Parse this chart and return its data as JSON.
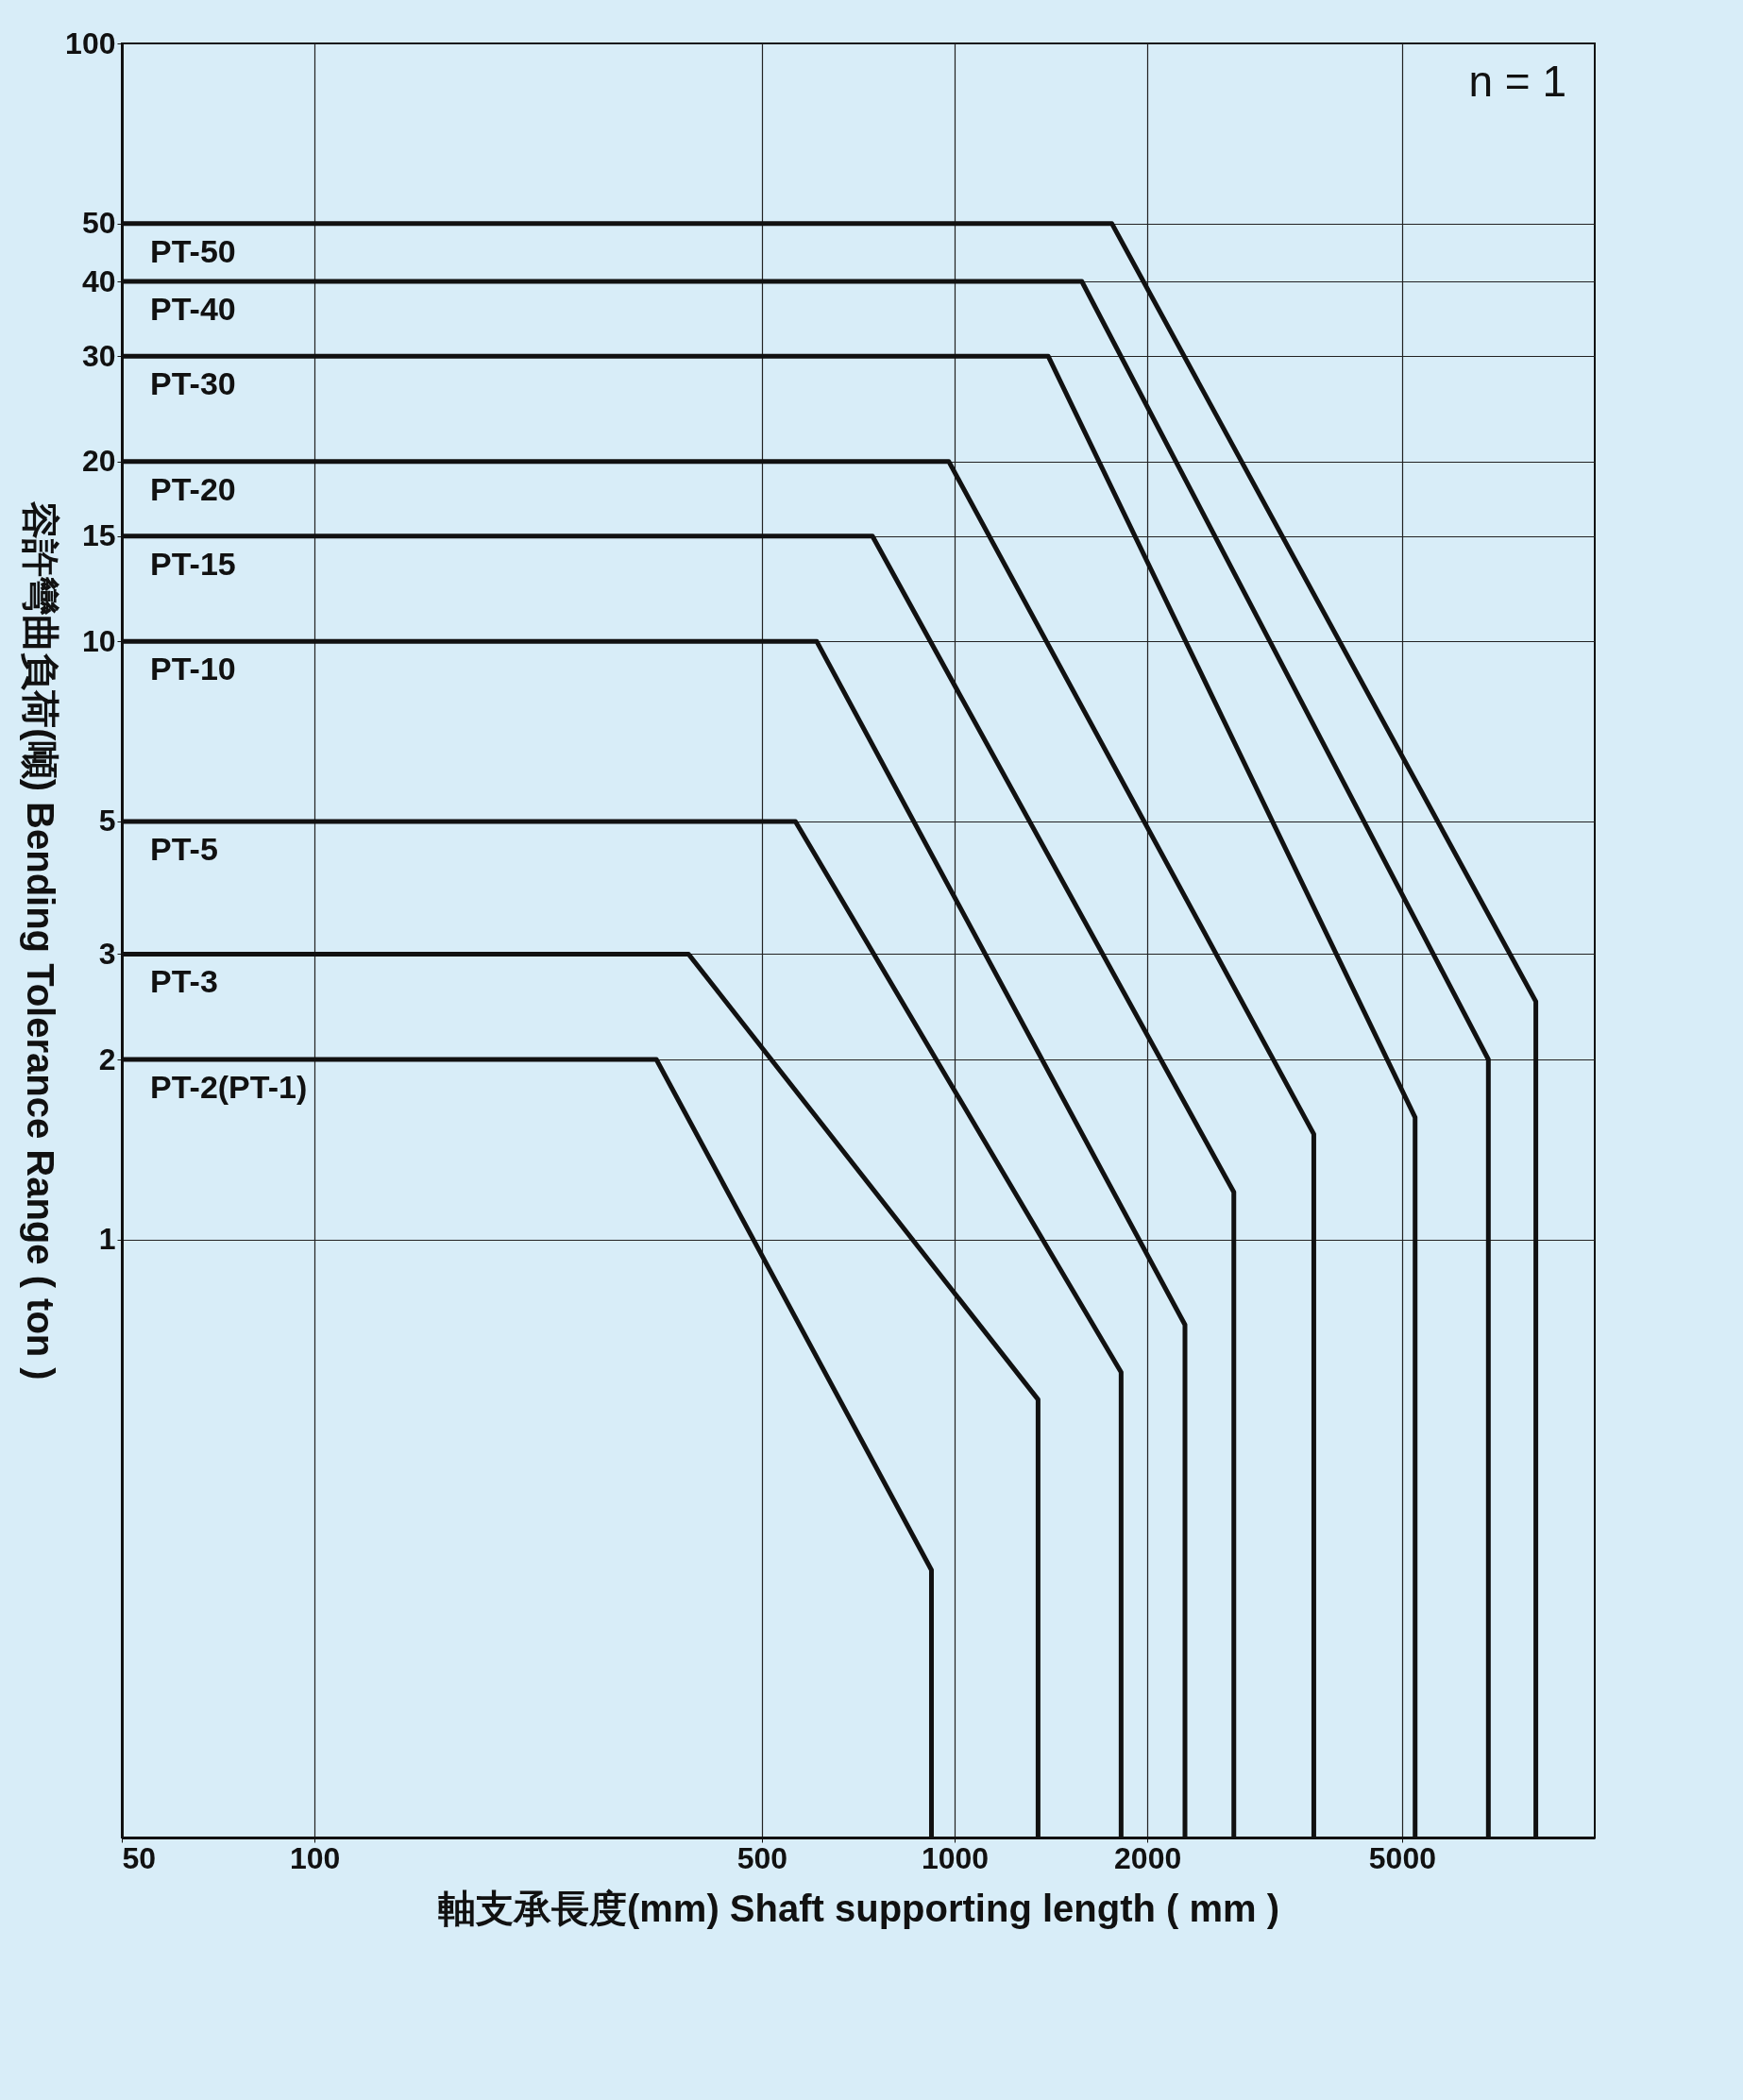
{
  "chart_data": {
    "type": "line",
    "xlabel": "軸支承長度(mm) Shaft supporting length ( mm )",
    "ylabel": "容許彎曲負荷(噸) Bending Tolerance Range ( ton )",
    "annotations": [
      "n = 1"
    ],
    "xlim": [
      50,
      10000
    ],
    "xticks": [
      50,
      100,
      500,
      1000,
      2000,
      5000
    ],
    "ylim": [
      0.1,
      100
    ],
    "yticks": [
      1,
      2,
      3,
      5,
      10,
      15,
      20,
      30,
      40,
      50,
      100
    ],
    "grid": true,
    "log": "xy",
    "series": [
      {
        "name": "PT-50",
        "color": "#111111",
        "x": [
          50,
          1760,
          8090,
          8090
        ],
        "values": [
          50,
          50,
          2.5,
          0.1
        ]
      },
      {
        "name": "PT-40",
        "color": "#111111",
        "x": [
          50,
          1580,
          6820,
          6820
        ],
        "values": [
          40,
          40,
          2,
          0.1
        ]
      },
      {
        "name": "PT-30",
        "color": "#111111",
        "x": [
          50,
          1400,
          5240,
          5240
        ],
        "values": [
          30,
          30,
          1.6,
          0.1
        ]
      },
      {
        "name": "PT-20",
        "color": "#111111",
        "x": [
          50,
          979,
          3640,
          3640
        ],
        "values": [
          20,
          20,
          1.5,
          0.1
        ]
      },
      {
        "name": "PT-15",
        "color": "#111111",
        "x": [
          50,
          744,
          2730,
          2730
        ],
        "values": [
          15,
          15,
          1.2,
          0.1
        ]
      },
      {
        "name": "PT-10",
        "color": "#111111",
        "x": [
          50,
          609,
          2290,
          2290
        ],
        "values": [
          10,
          10,
          0.72,
          0.1
        ]
      },
      {
        "name": "PT-5",
        "color": "#111111",
        "x": [
          50,
          564,
          1820,
          1820
        ],
        "values": [
          5,
          5,
          0.6,
          0.1
        ]
      },
      {
        "name": "PT-3",
        "color": "#111111",
        "x": [
          50,
          384,
          1350,
          1350
        ],
        "values": [
          3,
          3,
          0.54,
          0.1
        ]
      },
      {
        "name": "PT-2(PT-1)",
        "color": "#111111",
        "x": [
          50,
          342,
          920,
          920
        ],
        "values": [
          2,
          2,
          0.28,
          0.1
        ]
      }
    ]
  }
}
